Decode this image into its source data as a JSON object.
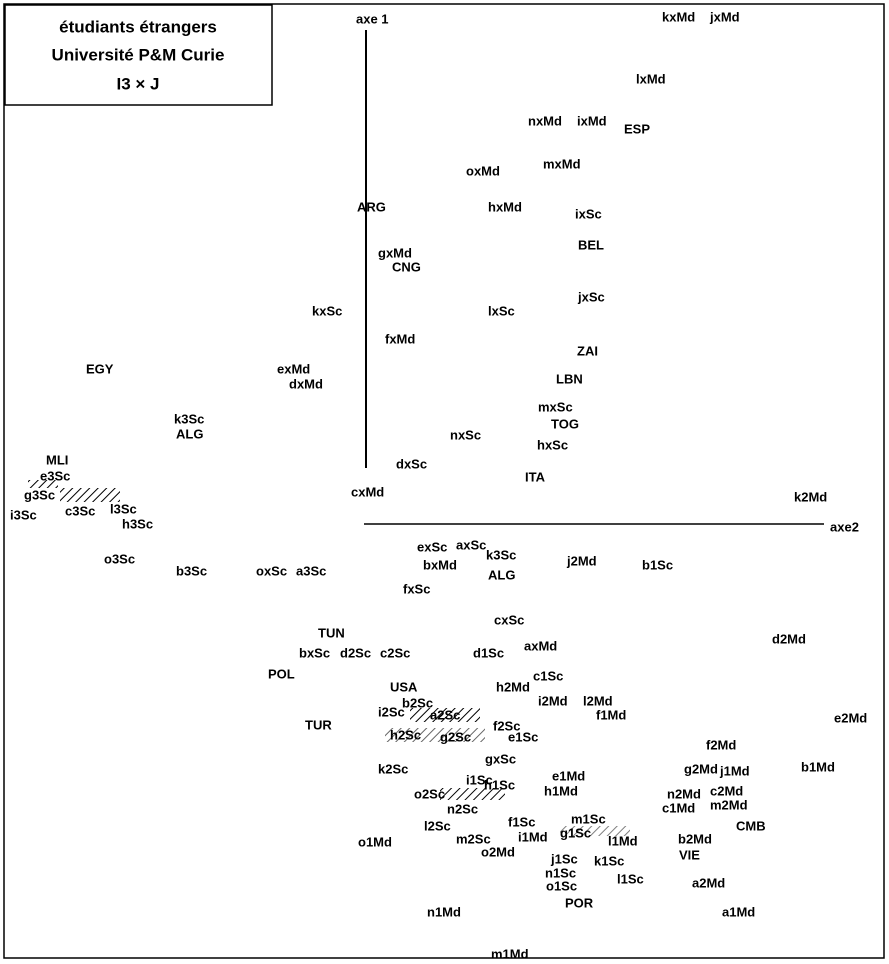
{
  "header": {
    "title": [
      "étudiants étrangers",
      "Université P&M Curie",
      "I3 × J"
    ]
  },
  "axes": {
    "axis1": "axe 1",
    "axis2": "axe2"
  },
  "labels": [
    "kxMd",
    "jxMd",
    "lxMd",
    "nxMd",
    "ixMd",
    "ESP",
    "mxMd",
    "oxMd",
    "ARG",
    "hxMd",
    "ixSc",
    "BEL",
    "gxMd",
    "CNG",
    "jxSc",
    "kxSc",
    "lxSc",
    "fxMd",
    "ZAI",
    "EGY",
    "exMd",
    "dxMd",
    "LBN",
    "mxSc",
    "k3Sc",
    "TOG",
    "ALG",
    "nxSc",
    "hxSc",
    "MLI",
    "dxSc",
    "e3Sc",
    "ITA",
    "g3Sc",
    "cxMd",
    "c3Sc",
    "l3Sc",
    "i3Sc",
    "h3Sc",
    "k2Md",
    "exSc",
    "axSc",
    "k3Sc",
    "o3Sc",
    "j2Md",
    "b1Sc",
    "bxMd",
    "ALG",
    "b3Sc",
    "oxSc",
    "a3Sc",
    "fxSc",
    "cxSc",
    "TUN",
    "d2Md",
    "bxSc",
    "d2Sc",
    "c2Sc",
    "d1Sc",
    "axMd",
    "POL",
    "c1Sc",
    "USA",
    "h2Md",
    "b2Sc",
    "i2Md",
    "l2Md",
    "i2Sc",
    "a2Sc",
    "f1Md",
    "TUR",
    "f2Sc",
    "e2Md",
    "h2Sc",
    "g2Sc",
    "e1Sc",
    "f2Md",
    "gxSc",
    "k2Sc",
    "e1Md",
    "g2Md",
    "j1Md",
    "b1Md",
    "i1Sc",
    "h1Sc",
    "h1Md",
    "n2Md",
    "c2Md",
    "o2Sc",
    "m2Md",
    "c1Md",
    "n2Sc",
    "f1Sc",
    "m1Sc",
    "CMB",
    "l2Sc",
    "g1Sc",
    "l1Md",
    "i1Md",
    "m2Sc",
    "b2Md",
    "o1Md",
    "o2Md",
    "VIE",
    "j1Sc",
    "k1Sc",
    "n1Sc",
    "l1Sc",
    "o1Sc",
    "a2Md",
    "POR",
    "n1Md",
    "a1Md",
    "m1Md"
  ]
}
